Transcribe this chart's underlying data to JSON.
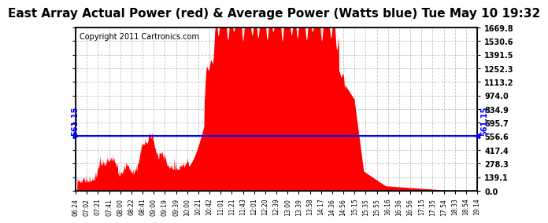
{
  "title": "East Array Actual Power (red) & Average Power (Watts blue) Tue May 10 19:32",
  "copyright": "Copyright 2011 Cartronics.com",
  "avg_power": 561.15,
  "y_max": 1669.8,
  "y_min": 0.0,
  "y_ticks": [
    0.0,
    139.1,
    278.3,
    417.4,
    556.6,
    695.7,
    834.9,
    974.0,
    1113.2,
    1252.3,
    1391.5,
    1530.6,
    1669.8
  ],
  "x_labels": [
    "06:24",
    "07:02",
    "07:21",
    "07:41",
    "08:00",
    "08:22",
    "08:41",
    "09:00",
    "09:19",
    "09:39",
    "10:00",
    "10:21",
    "10:42",
    "11:01",
    "11:21",
    "11:43",
    "12:01",
    "12:20",
    "12:39",
    "13:00",
    "13:39",
    "13:58",
    "14:17",
    "14:36",
    "14:56",
    "15:15",
    "15:35",
    "15:55",
    "16:16",
    "16:36",
    "16:56",
    "17:15",
    "17:35",
    "17:54",
    "18:33",
    "18:54",
    "19:14"
  ],
  "title_fontsize": 11,
  "copyright_fontsize": 7,
  "line_color": "#0000ff",
  "fill_color": "#ff0000",
  "bg_color": "#ffffff",
  "grid_color": "#aaaaaa",
  "avg_label": "561.15"
}
